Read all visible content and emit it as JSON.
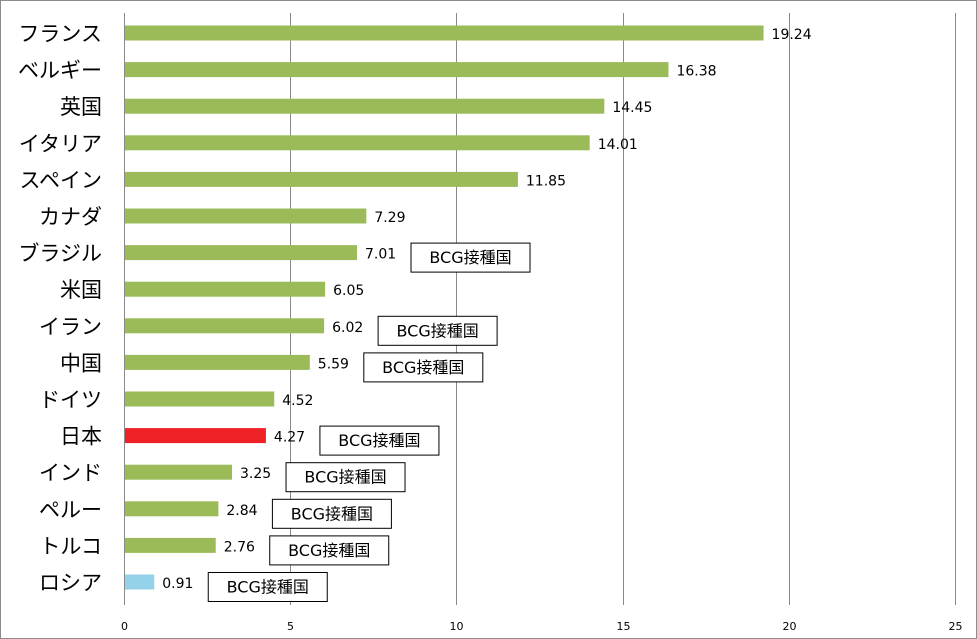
{
  "colors": {
    "default_bar": "#9bbb59",
    "highlight_bar": "#ee2127",
    "light_bar": "#93d2e8",
    "gridline": "#8a8a8a"
  },
  "chart_data": {
    "type": "bar",
    "orientation": "horizontal",
    "title": "",
    "xlabel": "",
    "ylabel": "",
    "xlim": [
      0,
      25
    ],
    "x_ticks": [
      0,
      5,
      10,
      15,
      20,
      25
    ],
    "grid": "vertical",
    "legend": "none",
    "categories": [
      "フランス",
      "ベルギー",
      "英国",
      "イタリア",
      "スペイン",
      "カナダ",
      "ブラジル",
      "米国",
      "イラン",
      "中国",
      "ドイツ",
      "日本",
      "インド",
      "ペルー",
      "トルコ",
      "ロシア"
    ],
    "values": [
      19.24,
      16.38,
      14.45,
      14.01,
      11.85,
      7.29,
      7.01,
      6.05,
      6.02,
      5.59,
      4.52,
      4.27,
      3.25,
      2.84,
      2.76,
      0.91
    ],
    "value_labels": [
      "19.24",
      "16.38",
      "14.45",
      "14.01",
      "11.85",
      "7.29",
      "7.01",
      "6.05",
      "6.02",
      "5.59",
      "4.52",
      "4.27",
      "3.25",
      "2.84",
      "2.76",
      "0.91"
    ],
    "bar_colors": [
      "default",
      "default",
      "default",
      "default",
      "default",
      "default",
      "default",
      "default",
      "default",
      "default",
      "default",
      "highlight",
      "default",
      "default",
      "default",
      "light"
    ],
    "annotations": [
      "",
      "",
      "",
      "",
      "",
      "",
      "BCG接種国",
      "",
      "BCG接種国",
      "BCG接種国",
      "",
      "BCG接種国",
      "BCG接種国",
      "BCG接種国",
      "BCG接種国",
      "BCG接種国"
    ]
  }
}
